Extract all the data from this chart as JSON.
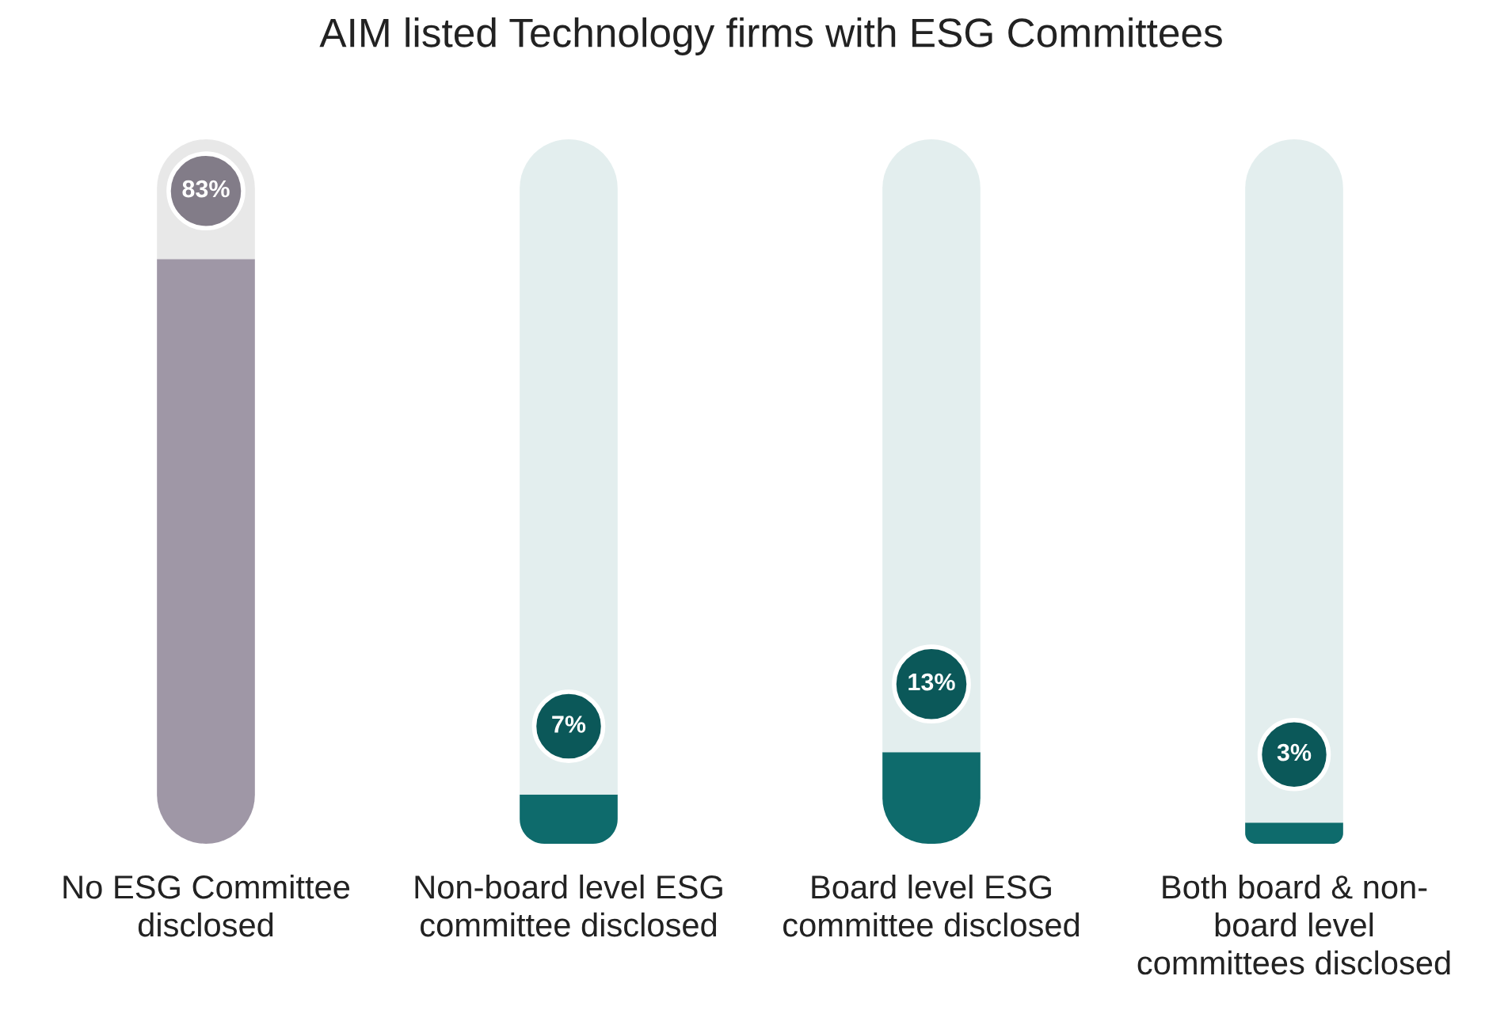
{
  "chart_data": {
    "type": "bar",
    "title": "AIM listed Technology firms with ESG Committees",
    "categories": [
      "No ESG Committee\ndisclosed",
      "Non-board level ESG\ncommittee disclosed",
      "Board level ESG\ncommittee disclosed",
      "Both board & non-\nboard level\ncommittees disclosed"
    ],
    "series": [
      {
        "colors": [
          "#9f97a6",
          "#0e6b6c",
          "#0e6b6c",
          "#0e6b6c"
        ],
        "values": [
          83,
          7,
          13,
          3
        ],
        "value_labels": [
          "83%",
          "7%",
          "13%",
          "3%"
        ]
      },
      {
        "colors": [
          "#e8e8e8",
          "#e3eeee",
          "#e3eeee",
          "#e3eeee"
        ],
        "values": [
          17,
          93,
          87,
          97
        ]
      }
    ],
    "stacked": true,
    "ylim": [
      0,
      100
    ],
    "tick_labels": "x"
  }
}
